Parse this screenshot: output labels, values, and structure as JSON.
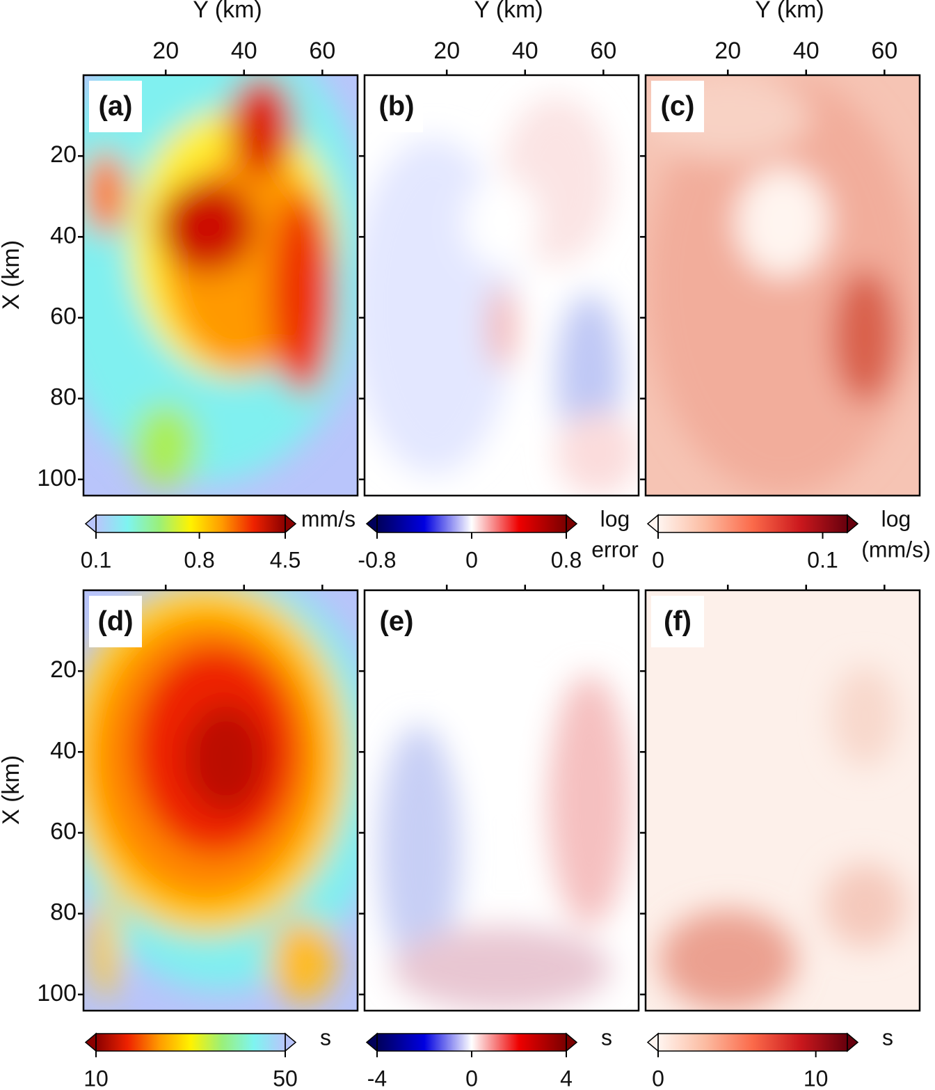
{
  "chart_data": [
    {
      "type": "heatmap",
      "label": "(a)",
      "xlabel": "Y (km)",
      "ylabel": "X (km)",
      "xlim": [
        -1,
        69
      ],
      "xticks": [
        20,
        40,
        60
      ],
      "ylim": [
        0,
        104
      ],
      "yticks": [
        20,
        40,
        60,
        80,
        100
      ],
      "colorbar": {
        "label": [
          "mm/s"
        ],
        "lim": [
          0.1,
          4.5
        ],
        "ticks": [
          0.1,
          0.8,
          4.5
        ],
        "log": true,
        "colors": [
          "#b9c5fb",
          "#7ef4f0",
          "#9af07a",
          "#fff200",
          "#ff9a00",
          "#ee2200",
          "#8a0000"
        ]
      }
    },
    {
      "type": "heatmap",
      "label": "(b)",
      "xlabel": "Y (km)",
      "xlim": [
        -1,
        69
      ],
      "xticks": [
        20,
        40,
        60
      ],
      "ylim": [
        0,
        104
      ],
      "yticks": [
        20,
        40,
        60,
        80,
        100
      ],
      "colorbar": {
        "label": [
          "log",
          "error"
        ],
        "lim": [
          -0.8,
          0.8
        ],
        "ticks": [
          -0.8,
          0,
          0.8
        ],
        "colors": [
          "#00005a",
          "#0000e0",
          "#ffffff",
          "#ee0000",
          "#7a0000"
        ]
      }
    },
    {
      "type": "heatmap",
      "label": "(c)",
      "xlabel": "Y (km)",
      "xlim": [
        -1,
        69
      ],
      "xticks": [
        20,
        40,
        60
      ],
      "ylim": [
        0,
        104
      ],
      "yticks": [
        20,
        40,
        60,
        80,
        100
      ],
      "colorbar": {
        "label": [
          "log",
          "(mm/s)"
        ],
        "lim": [
          0,
          0.115
        ],
        "ticks": [
          0,
          0.1
        ],
        "colors": [
          "#fff5f0",
          "#fcbba1",
          "#fb6a4a",
          "#cb181d",
          "#67000d"
        ]
      }
    },
    {
      "type": "heatmap",
      "label": "(d)",
      "ylabel": "X (km)",
      "xlim": [
        -1,
        69
      ],
      "xticks": [
        20,
        40,
        60
      ],
      "ylim": [
        0,
        104
      ],
      "yticks": [
        20,
        40,
        60,
        80,
        100
      ],
      "colorbar": {
        "label": [
          "s"
        ],
        "lim": [
          10,
          50
        ],
        "ticks": [
          10,
          50
        ],
        "colors": [
          "#8a0000",
          "#ee2200",
          "#ff9a00",
          "#fff200",
          "#9af07a",
          "#7ef4f0",
          "#b9c5fb"
        ]
      }
    },
    {
      "type": "heatmap",
      "label": "(e)",
      "xlim": [
        -1,
        69
      ],
      "xticks": [
        20,
        40,
        60
      ],
      "ylim": [
        0,
        104
      ],
      "yticks": [
        20,
        40,
        60,
        80,
        100
      ],
      "colorbar": {
        "label": [
          "s"
        ],
        "lim": [
          -4,
          4
        ],
        "ticks": [
          -4,
          0,
          4
        ],
        "colors": [
          "#00005a",
          "#0000e0",
          "#ffffff",
          "#ee0000",
          "#7a0000"
        ]
      }
    },
    {
      "type": "heatmap",
      "label": "(f)",
      "xlim": [
        -1,
        69
      ],
      "xticks": [
        20,
        40,
        60
      ],
      "ylim": [
        0,
        104
      ],
      "yticks": [
        20,
        40,
        60,
        80,
        100
      ],
      "colorbar": {
        "label": [
          "s"
        ],
        "lim": [
          0,
          12
        ],
        "ticks": [
          0,
          10
        ],
        "colors": [
          "#fff5f0",
          "#fcbba1",
          "#fb6a4a",
          "#cb181d",
          "#67000d"
        ]
      }
    }
  ]
}
